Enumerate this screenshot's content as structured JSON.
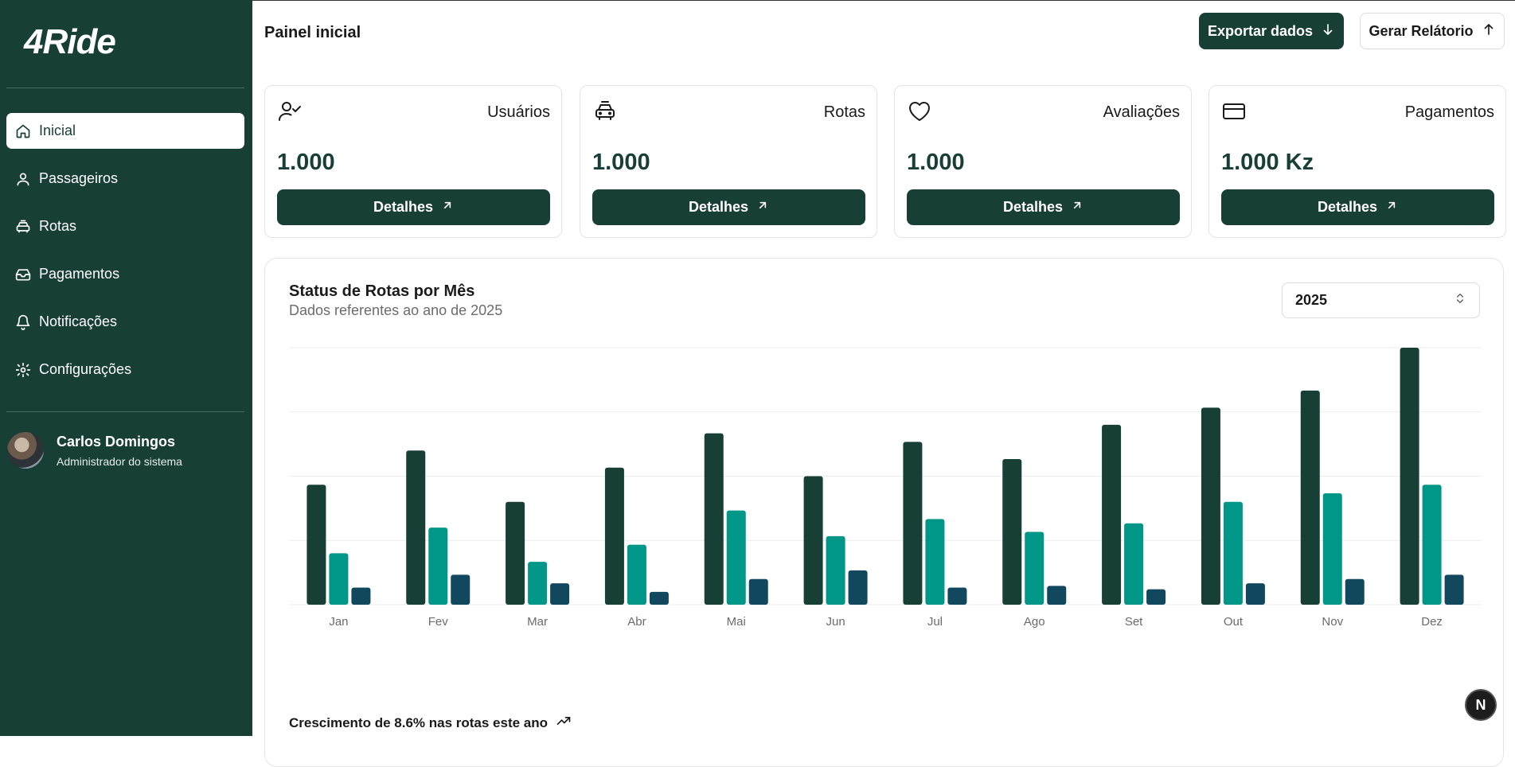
{
  "app": {
    "logo": "4Ride"
  },
  "sidebar": {
    "items": [
      {
        "label": "Inicial",
        "icon": "home-icon",
        "active": true
      },
      {
        "label": "Passageiros",
        "icon": "user-icon"
      },
      {
        "label": "Rotas",
        "icon": "car-icon"
      },
      {
        "label": "Pagamentos",
        "icon": "inbox-icon"
      },
      {
        "label": "Notificações",
        "icon": "bell-icon"
      },
      {
        "label": "Configurações",
        "icon": "gear-icon"
      }
    ],
    "user": {
      "name": "Carlos Domingos",
      "role": "Administrador do sistema"
    }
  },
  "header": {
    "title": "Painel inicial",
    "export_label": "Exportar dados",
    "report_label": "Gerar Relátorio"
  },
  "cards": [
    {
      "title": "Usuários",
      "value": "1.000",
      "button": "Detalhes",
      "icon": "user-check-icon"
    },
    {
      "title": "Rotas",
      "value": "1.000",
      "button": "Detalhes",
      "icon": "car-icon"
    },
    {
      "title": "Avaliações",
      "value": "1.000",
      "button": "Detalhes",
      "icon": "heart-icon"
    },
    {
      "title": "Pagamentos",
      "value": "1.000 Kz",
      "button": "Detalhes",
      "icon": "credit-card-icon"
    }
  ],
  "chart_section": {
    "title": "Status de Rotas por Mês",
    "subtitle": "Dados referentes ao ano de 2025",
    "year": "2025",
    "footer": "Crescimento de 8.6% nas rotas este ano"
  },
  "chart_data": {
    "type": "bar",
    "categories": [
      "Jan",
      "Fev",
      "Mar",
      "Abr",
      "Mai",
      "Jun",
      "Jul",
      "Ago",
      "Set",
      "Out",
      "Nov",
      "Dez"
    ],
    "series": [
      {
        "color": "#173f35",
        "values": [
          140,
          180,
          120,
          160,
          200,
          150,
          190,
          170,
          210,
          230,
          250,
          300
        ]
      },
      {
        "color": "#009688",
        "values": [
          60,
          90,
          50,
          70,
          110,
          80,
          100,
          85,
          95,
          120,
          130,
          140
        ]
      },
      {
        "color": "#12485e",
        "values": [
          20,
          35,
          25,
          15,
          30,
          40,
          20,
          22,
          18,
          25,
          30,
          35
        ]
      }
    ],
    "ylim": [
      0,
      300
    ],
    "grid": true
  },
  "colors": {
    "primary": "#173f35",
    "teal": "#009688",
    "navy": "#12485e"
  }
}
